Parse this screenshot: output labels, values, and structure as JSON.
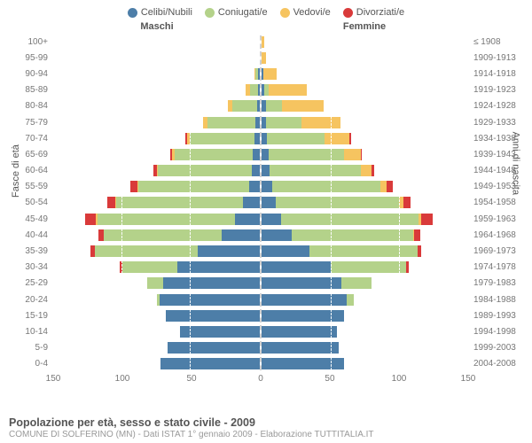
{
  "legend": [
    {
      "label": "Celibi/Nubili",
      "color": "#4d7ea8"
    },
    {
      "label": "Coniugati/e",
      "color": "#b4d28a"
    },
    {
      "label": "Vedovi/e",
      "color": "#f6c460"
    },
    {
      "label": "Divorziati/e",
      "color": "#d93a3a"
    }
  ],
  "headers": {
    "male": "Maschi",
    "female": "Femmine"
  },
  "axis": {
    "y_left": "Fasce di età",
    "y_right": "Anni di nascita"
  },
  "title": "Popolazione per età, sesso e stato civile - 2009",
  "subtitle": "COMUNE DI SOLFERINO (MN) - Dati ISTAT 1° gennaio 2009 - Elaborazione TUTTITALIA.IT",
  "x_max": 150,
  "x_ticks": [
    150,
    100,
    50,
    0,
    50,
    100,
    150
  ],
  "colors": {
    "celibi": "#4d7ea8",
    "coniugati": "#b4d28a",
    "vedovi": "#f6c460",
    "divorziati": "#d93a3a",
    "grid": "#ffffff",
    "text": "#777777",
    "center_line": "#d0d0d0"
  },
  "rows": [
    {
      "age": "100+",
      "year": "≤ 1908",
      "m": [
        0,
        0,
        0,
        0
      ],
      "f": [
        0,
        0,
        2,
        0
      ]
    },
    {
      "age": "95-99",
      "year": "1909-1913",
      "m": [
        0,
        0,
        0,
        0
      ],
      "f": [
        0,
        0,
        3,
        0
      ]
    },
    {
      "age": "90-94",
      "year": "1914-1918",
      "m": [
        1,
        2,
        1,
        0
      ],
      "f": [
        1,
        0,
        10,
        0
      ]
    },
    {
      "age": "85-89",
      "year": "1919-1923",
      "m": [
        1,
        6,
        3,
        0
      ],
      "f": [
        2,
        3,
        28,
        0
      ]
    },
    {
      "age": "80-84",
      "year": "1924-1928",
      "m": [
        2,
        18,
        3,
        0
      ],
      "f": [
        3,
        12,
        30,
        0
      ]
    },
    {
      "age": "75-79",
      "year": "1929-1933",
      "m": [
        3,
        35,
        3,
        0
      ],
      "f": [
        3,
        26,
        28,
        0
      ]
    },
    {
      "age": "70-74",
      "year": "1934-1938",
      "m": [
        4,
        47,
        2,
        1
      ],
      "f": [
        4,
        42,
        18,
        1
      ]
    },
    {
      "age": "65-69",
      "year": "1939-1943",
      "m": [
        5,
        57,
        2,
        1
      ],
      "f": [
        5,
        55,
        12,
        1
      ]
    },
    {
      "age": "60-64",
      "year": "1944-1948",
      "m": [
        6,
        68,
        1,
        2
      ],
      "f": [
        6,
        66,
        8,
        2
      ]
    },
    {
      "age": "55-59",
      "year": "1949-1953",
      "m": [
        8,
        80,
        1,
        5
      ],
      "f": [
        8,
        78,
        5,
        4
      ]
    },
    {
      "age": "50-54",
      "year": "1954-1958",
      "m": [
        12,
        92,
        1,
        6
      ],
      "f": [
        10,
        90,
        3,
        5
      ]
    },
    {
      "age": "45-49",
      "year": "1959-1963",
      "m": [
        18,
        100,
        1,
        8
      ],
      "f": [
        14,
        100,
        2,
        8
      ]
    },
    {
      "age": "40-44",
      "year": "1964-1968",
      "m": [
        28,
        85,
        0,
        4
      ],
      "f": [
        22,
        88,
        1,
        4
      ]
    },
    {
      "age": "35-39",
      "year": "1969-1973",
      "m": [
        45,
        75,
        0,
        3
      ],
      "f": [
        35,
        78,
        0,
        3
      ]
    },
    {
      "age": "30-34",
      "year": "1974-1978",
      "m": [
        60,
        40,
        0,
        2
      ],
      "f": [
        50,
        55,
        0,
        2
      ]
    },
    {
      "age": "25-29",
      "year": "1979-1983",
      "m": [
        70,
        12,
        0,
        0
      ],
      "f": [
        58,
        22,
        0,
        0
      ]
    },
    {
      "age": "20-24",
      "year": "1984-1988",
      "m": [
        73,
        2,
        0,
        0
      ],
      "f": [
        62,
        5,
        0,
        0
      ]
    },
    {
      "age": "15-19",
      "year": "1989-1993",
      "m": [
        68,
        0,
        0,
        0
      ],
      "f": [
        60,
        0,
        0,
        0
      ]
    },
    {
      "age": "10-14",
      "year": "1994-1998",
      "m": [
        58,
        0,
        0,
        0
      ],
      "f": [
        55,
        0,
        0,
        0
      ]
    },
    {
      "age": "5-9",
      "year": "1999-2003",
      "m": [
        67,
        0,
        0,
        0
      ],
      "f": [
        56,
        0,
        0,
        0
      ]
    },
    {
      "age": "0-4",
      "year": "2004-2008",
      "m": [
        72,
        0,
        0,
        0
      ],
      "f": [
        60,
        0,
        0,
        0
      ]
    }
  ]
}
